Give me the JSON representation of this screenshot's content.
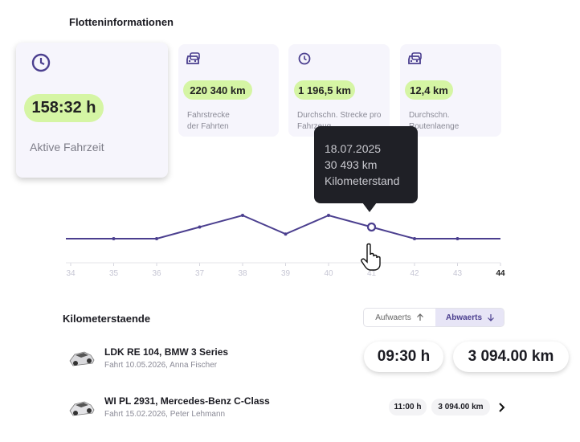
{
  "header": {
    "title": "Flotteninformationen"
  },
  "stats": [
    {
      "value": "158:32 h",
      "label_lines": [
        "Aktive Fahrzeit"
      ]
    },
    {
      "value": "220 340 km",
      "label_lines": [
        "Fahrstrecke",
        "der Fahrten"
      ]
    },
    {
      "value": "1 196,5 km",
      "label_lines": [
        "Durchschn. Strecke pro",
        "Fahrzeug"
      ]
    },
    {
      "value": "12,4 km",
      "label_lines": [
        "Durchschn.",
        "Routenlaenge"
      ]
    }
  ],
  "chart_data": {
    "type": "line",
    "x": [
      34,
      35,
      36,
      37,
      38,
      39,
      40,
      41,
      42,
      43,
      44
    ],
    "values": [
      0,
      0,
      0,
      1,
      2,
      0.4,
      2,
      1,
      0,
      0,
      0
    ],
    "color": "#4b3f8f",
    "xlim": [
      34,
      44
    ],
    "xticks": [
      34,
      35,
      36,
      37,
      38,
      39,
      40,
      41,
      42,
      43,
      44
    ],
    "highlight_x": 41
  },
  "tooltip": {
    "date": "18.07.2025",
    "value": "30 493 km",
    "label": "Kilometerstand"
  },
  "list": {
    "title": "Kilometerstaende",
    "sort_options": [
      "Aufwaerts",
      "Abwaerts"
    ],
    "rows": [
      {
        "title": "LDK RE 104, BMW 3 Series",
        "subtitle": "Fahrt 10.05.2026, Anna Fischer",
        "duration": "09:30 h",
        "distance": "3 094.00 km"
      },
      {
        "title": "WI PL 2931, Mercedes-Benz C-Class",
        "subtitle": "Fahrt 15.02.2026, Peter Lehmann",
        "duration": "11:00 h",
        "distance": "3 094.00 km"
      }
    ]
  }
}
